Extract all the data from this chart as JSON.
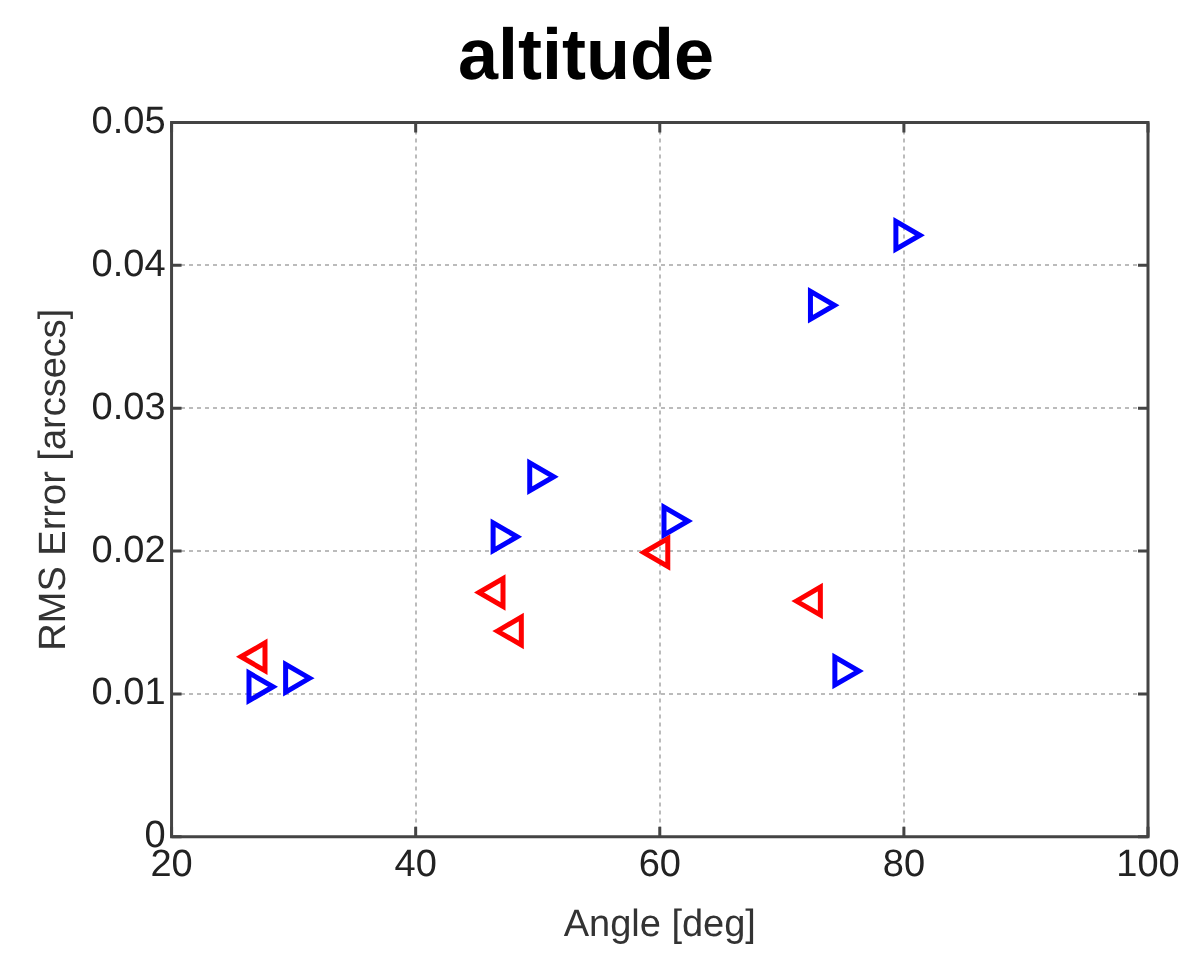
{
  "chart_data": {
    "type": "scatter",
    "title": "altitude",
    "xlabel": "Angle [deg]",
    "ylabel": "RMS Error [arcsecs]",
    "xlim": [
      20,
      100
    ],
    "xticks": [
      20,
      40,
      60,
      80,
      100
    ],
    "ylim": [
      0,
      0.05
    ],
    "yticks": [
      0,
      0.01,
      0.02,
      0.03,
      0.04,
      0.05
    ],
    "grid": true,
    "legend": false,
    "marker": "triangle",
    "series": [
      {
        "color": "#0000ff",
        "x": [
          27,
          30,
          47,
          50,
          61,
          73,
          80,
          75
        ],
        "values": [
          0.0105,
          0.0111,
          0.021,
          0.0252,
          0.0221,
          0.0372,
          0.0421,
          0.0116
        ]
      },
      {
        "color": "#ff0000",
        "x": [
          27,
          46.5,
          48,
          60,
          72.5
        ],
        "values": [
          0.0126,
          0.0171,
          0.0144,
          0.0199,
          0.0165
        ]
      }
    ]
  }
}
